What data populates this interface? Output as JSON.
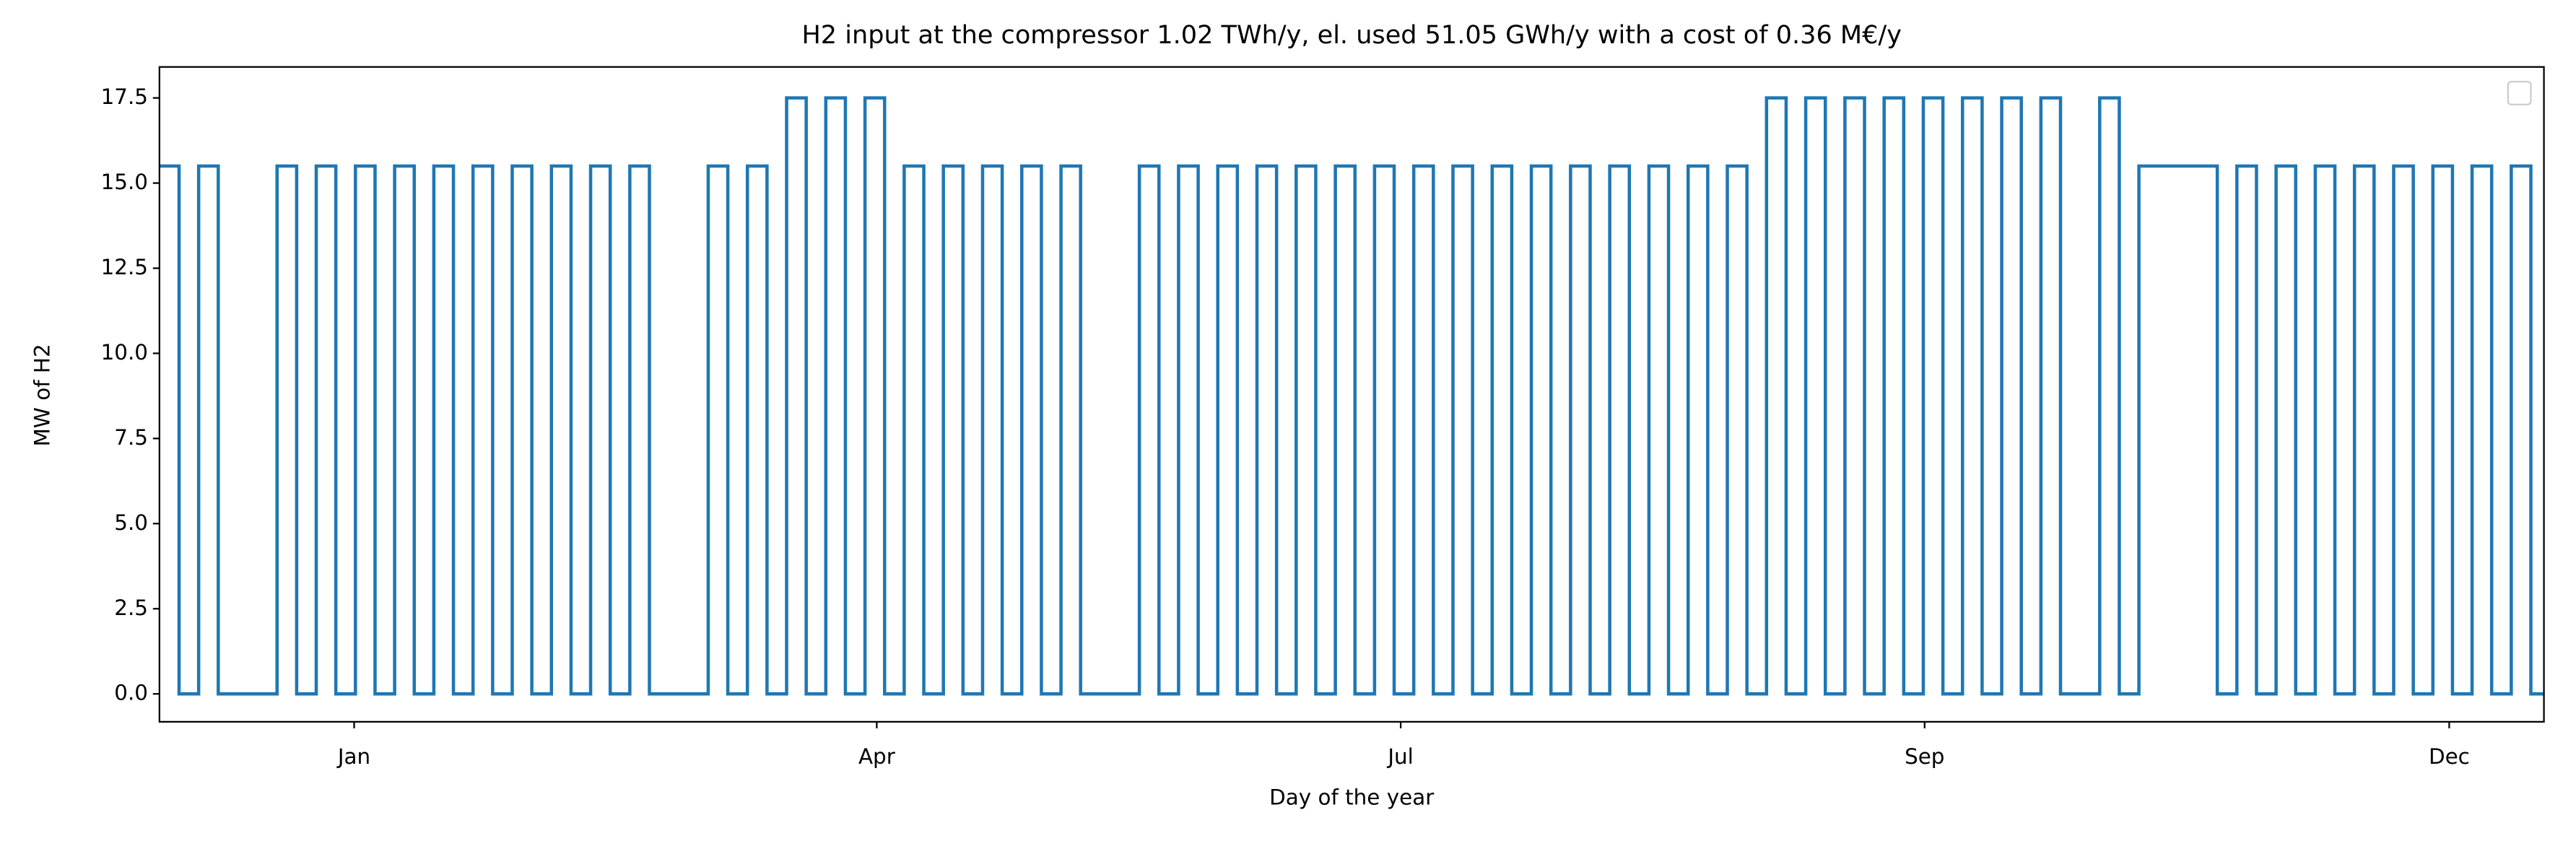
{
  "chart_data": {
    "type": "line",
    "title": "H2 input at the compressor 1.02 TWh/y, el. used 51.05 GWh/y with a cost of 0.36 M€/y",
    "xlabel": "Day of the year",
    "ylabel": "MW of H2",
    "xlim": [
      0,
      365
    ],
    "xticks": [
      {
        "value": 29.8,
        "label": "Jan"
      },
      {
        "value": 109.8,
        "label": "Apr"
      },
      {
        "value": 190,
        "label": "Jul"
      },
      {
        "value": 270.2,
        "label": "Sep"
      },
      {
        "value": 350.5,
        "label": "Dec"
      }
    ],
    "ylim": [
      -0.82,
      18.41
    ],
    "yticks": [
      {
        "value": 0,
        "label": "0.0"
      },
      2.5,
      {
        "value": 5,
        "label": "5.0"
      },
      7.5,
      {
        "value": 10,
        "label": "10.0"
      },
      12.5,
      {
        "value": 15,
        "label": "15.0"
      },
      17.5
    ],
    "legend": "upper right",
    "series": [
      {
        "color": "#1f77b4",
        "x": [
          0,
          3,
          6,
          9,
          12,
          15,
          18,
          21,
          24,
          27,
          30,
          33,
          36,
          39,
          42,
          45,
          48,
          51,
          54,
          57,
          60,
          63,
          66,
          69,
          72,
          75,
          78,
          81,
          84,
          87,
          90,
          93,
          96,
          99,
          102,
          105,
          108,
          111,
          114,
          117,
          120,
          123,
          126,
          129,
          132,
          135,
          138,
          141,
          144,
          147,
          150,
          153,
          156,
          159,
          162,
          165,
          168,
          171,
          174,
          177,
          180,
          183,
          186,
          189,
          192,
          195,
          198,
          201,
          204,
          207,
          210,
          213,
          216,
          219,
          222,
          225,
          228,
          231,
          234,
          237,
          240,
          243,
          246,
          249,
          252,
          255,
          258,
          261,
          264,
          267,
          270,
          273,
          276,
          279,
          282,
          285,
          288,
          291,
          294,
          297,
          300,
          303,
          306,
          309,
          312,
          315,
          318,
          321,
          324,
          327,
          330,
          333,
          336,
          339,
          342,
          345,
          348,
          351,
          354,
          357,
          360,
          363
        ],
        "values": [
          15.5,
          0,
          15.5,
          0,
          0,
          0,
          15.5,
          0,
          15.5,
          0,
          15.5,
          0,
          15.5,
          0,
          15.5,
          0,
          15.5,
          0,
          15.5,
          0,
          15.5,
          0,
          15.5,
          0,
          15.5,
          0,
          0,
          0,
          15.5,
          0,
          15.5,
          0,
          17.5,
          0,
          17.5,
          0,
          17.5,
          0,
          15.5,
          0,
          15.5,
          0,
          15.5,
          0,
          15.5,
          0,
          15.5,
          0,
          0,
          0,
          15.5,
          0,
          15.5,
          0,
          15.5,
          0,
          15.5,
          0,
          15.5,
          0,
          15.5,
          0,
          15.5,
          0,
          15.5,
          0,
          15.5,
          0,
          15.5,
          0,
          15.5,
          0,
          15.5,
          0,
          15.5,
          0,
          15.5,
          0,
          15.5,
          0,
          15.5,
          0,
          17.5,
          0,
          17.5,
          0,
          17.5,
          0,
          17.5,
          0,
          17.5,
          0,
          17.5,
          0,
          17.5,
          0,
          17.5,
          0,
          0,
          17.5,
          0,
          15.5,
          15.5,
          15.5,
          15.5,
          0,
          15.5,
          0,
          15.5,
          0,
          15.5,
          0,
          15.5,
          0,
          15.5,
          0,
          15.5,
          0,
          15.5,
          0,
          15.5,
          0
        ]
      }
    ]
  }
}
